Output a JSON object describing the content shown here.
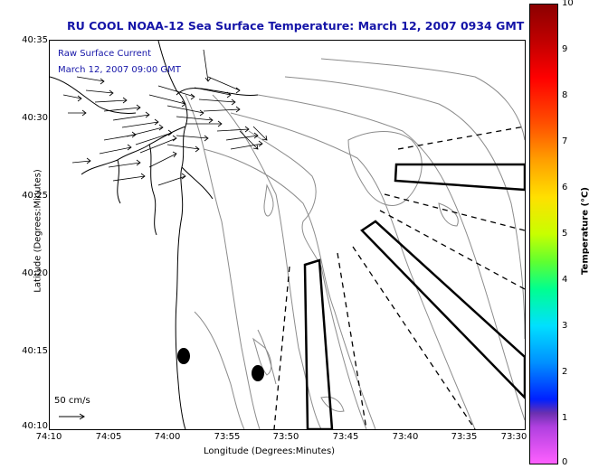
{
  "title": "RU COOL  NOAA-12  Sea Surface Temperature:  March 12, 2007 0934 GMT",
  "overlay": {
    "line1": "Raw Surface Current",
    "line2": "March 12, 2007 09:00 GMT"
  },
  "axes": {
    "ylabel": "Latitude (Degrees:Minutes)",
    "xlabel": "Longitude (Degrees:Minutes)",
    "yticks": [
      "40:35",
      "40:30",
      "40:25",
      "40:20",
      "40:15",
      "40:10"
    ],
    "xticks": [
      "74:10",
      "74:05",
      "74:00",
      "73:55",
      "73:50",
      "73:45",
      "73:40",
      "73:35",
      "73:30"
    ]
  },
  "scale_arrow_label": "50 cm/s",
  "colorbar": {
    "title": "Temperature (°C)",
    "ticks": [
      "10",
      "9",
      "8",
      "7",
      "6",
      "5",
      "4",
      "3",
      "2",
      "1",
      "0"
    ],
    "range": [
      0,
      10
    ]
  },
  "colors": {
    "title": "#1515a8",
    "contour": "#8c8c8c",
    "coast": "#000000"
  }
}
